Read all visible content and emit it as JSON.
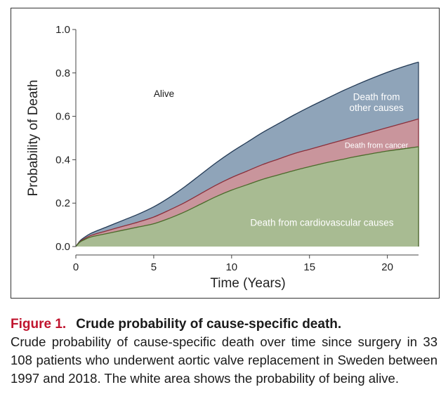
{
  "chart_data": {
    "type": "area",
    "stacked": true,
    "xlabel": "Time (Years)",
    "ylabel": "Probability of Death",
    "xlim": [
      0,
      22
    ],
    "ylim": [
      0,
      1
    ],
    "xticks": [
      0,
      5,
      10,
      15,
      20
    ],
    "yticks": [
      0.0,
      0.2,
      0.4,
      0.6,
      0.8,
      1.0
    ],
    "ytick_labels": [
      "0.0",
      "0.2",
      "0.4",
      "0.6",
      "0.8",
      "1.0"
    ],
    "grid": false,
    "x": [
      0,
      0.25,
      0.5,
      1,
      2,
      3,
      4,
      5,
      6,
      7,
      8,
      9,
      10,
      11,
      12,
      13,
      14,
      15,
      16,
      17,
      18,
      19,
      20,
      21,
      22
    ],
    "series": [
      {
        "name": "Death from cardiovascular causes",
        "color": "#a8bb92",
        "stroke": "#4a6a2a",
        "cumulative": [
          0,
          0.02,
          0.03,
          0.045,
          0.06,
          0.075,
          0.09,
          0.105,
          0.13,
          0.16,
          0.195,
          0.23,
          0.26,
          0.285,
          0.31,
          0.33,
          0.35,
          0.368,
          0.385,
          0.4,
          0.415,
          0.428,
          0.44,
          0.45,
          0.46
        ]
      },
      {
        "name": "Death from cancer",
        "color": "#c9959c",
        "stroke": "#8a2f3a",
        "cumulative": [
          0,
          0.022,
          0.034,
          0.052,
          0.073,
          0.093,
          0.113,
          0.136,
          0.168,
          0.203,
          0.243,
          0.283,
          0.318,
          0.348,
          0.378,
          0.403,
          0.428,
          0.448,
          0.468,
          0.488,
          0.508,
          0.528,
          0.548,
          0.568,
          0.588
        ]
      },
      {
        "name": "Death from other causes",
        "color": "#8fa4b9",
        "stroke": "#233a55",
        "cumulative": [
          0,
          0.025,
          0.04,
          0.062,
          0.091,
          0.12,
          0.149,
          0.183,
          0.226,
          0.276,
          0.331,
          0.386,
          0.436,
          0.481,
          0.526,
          0.566,
          0.606,
          0.643,
          0.678,
          0.713,
          0.745,
          0.775,
          0.803,
          0.828,
          0.85
        ]
      }
    ],
    "annotations": [
      {
        "text": "Alive",
        "x": 5.0,
        "y": 0.69,
        "color": "#1a1a1a",
        "size": "regular"
      },
      {
        "text": "Death from",
        "x": 19.3,
        "y": 0.675,
        "color": "#ffffff",
        "size": "regular"
      },
      {
        "text": "other causes",
        "x": 19.3,
        "y": 0.625,
        "color": "#ffffff",
        "size": "regular"
      },
      {
        "text": "Death from cancer",
        "x": 19.3,
        "y": 0.455,
        "color": "#ffffff",
        "size": "small"
      },
      {
        "text": "Death from cardiovascular causes",
        "x": 15.8,
        "y": 0.095,
        "color": "#ffffff",
        "size": "regular"
      }
    ]
  },
  "caption": {
    "label": "Figure 1.",
    "title": "Crude probability of cause-specific death.",
    "body": "Crude probability of cause-specific death over time since surgery in 33 108 patients who underwent aortic valve replacement in Sweden between 1997 and 2018. The white area shows the probability of being alive."
  }
}
